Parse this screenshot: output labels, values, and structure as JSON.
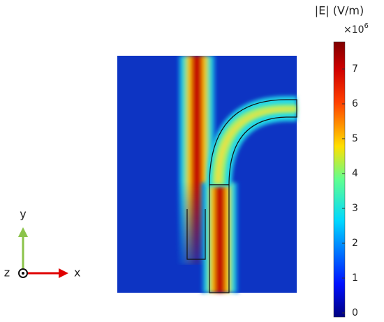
{
  "chart_data": {
    "type": "heatmap",
    "colorbar": {
      "label": "|E| (V/m)",
      "multiplier": "×10",
      "exponent": "6",
      "lim": [
        0,
        7.9
      ],
      "ticks": [
        0,
        1,
        2,
        3,
        4,
        5,
        6,
        7
      ]
    },
    "axes_triad": {
      "x": "x",
      "y": "y",
      "z": "z"
    }
  }
}
